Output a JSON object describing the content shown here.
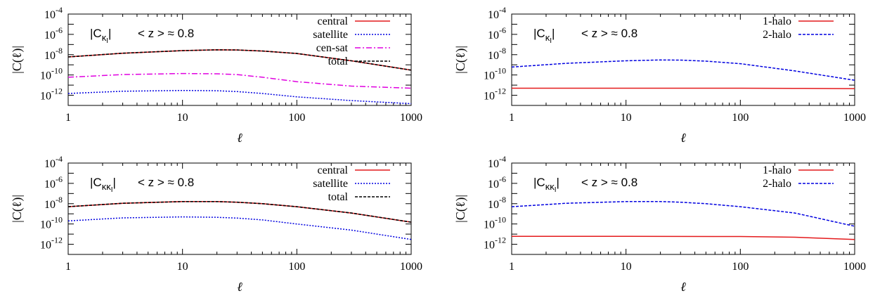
{
  "chart_data": [
    {
      "type": "line",
      "x_scale": "log",
      "y_scale": "log",
      "xlim": [
        1,
        1000
      ],
      "ylim": [
        1e-13,
        0.0001
      ],
      "xticks": [
        "1",
        "10",
        "100",
        "1000"
      ],
      "yticks": [
        {
          "base": "10",
          "exp": "-4"
        },
        {
          "base": "10",
          "exp": "-6"
        },
        {
          "base": "10",
          "exp": "-8"
        },
        {
          "base": "10",
          "exp": "-10"
        },
        {
          "base": "10",
          "exp": "-12"
        }
      ],
      "xlabel": "ℓ",
      "ylabel": "|C(ℓ)|",
      "legend_position": "top-right",
      "annotation_quantity": {
        "main": "|C",
        "sub": "κ",
        "subsub": "I",
        "close": "|"
      },
      "annotation_redshift": "< z > ≈ 0.8",
      "series": [
        {
          "name": "central",
          "color": "#e41a1c",
          "dash": "solid",
          "x": [
            1,
            3,
            10,
            20,
            30,
            50,
            100,
            300,
            1000
          ],
          "y": [
            6e-09,
            1.4e-08,
            2.5e-08,
            3e-08,
            2.9e-08,
            2.3e-08,
            1.3e-08,
            2.5e-09,
            3e-10
          ]
        },
        {
          "name": "satellite",
          "color": "#0000e0",
          "dash": "dotted",
          "x": [
            1,
            3,
            10,
            20,
            30,
            50,
            100,
            300,
            1000
          ],
          "y": [
            1.5e-12,
            2.5e-12,
            3e-12,
            2.8e-12,
            2.3e-12,
            1.5e-12,
            7e-13,
            3e-13,
            1.5e-13
          ]
        },
        {
          "name": "cen-sat",
          "color": "#e000e0",
          "dash": "dashdot",
          "x": [
            1,
            3,
            10,
            20,
            30,
            50,
            100,
            300,
            1000
          ],
          "y": [
            6e-11,
            1.1e-10,
            1.4e-10,
            1.3e-10,
            1.1e-10,
            6e-11,
            2.2e-11,
            8e-12,
            5e-12
          ]
        },
        {
          "name": "total",
          "color": "#000000",
          "dash": "dashed",
          "x": [
            1,
            3,
            10,
            20,
            30,
            50,
            100,
            300,
            1000
          ],
          "y": [
            6e-09,
            1.4e-08,
            2.5e-08,
            3e-08,
            2.9e-08,
            2.3e-08,
            1.3e-08,
            2.5e-09,
            3e-10
          ]
        }
      ]
    },
    {
      "type": "line",
      "x_scale": "log",
      "y_scale": "log",
      "xlim": [
        1,
        1000
      ],
      "ylim": [
        1e-13,
        0.0001
      ],
      "xticks": [
        "1",
        "10",
        "100",
        "1000"
      ],
      "yticks": [
        {
          "base": "10",
          "exp": "-4"
        },
        {
          "base": "10",
          "exp": "-6"
        },
        {
          "base": "10",
          "exp": "-8"
        },
        {
          "base": "10",
          "exp": "-10"
        },
        {
          "base": "10",
          "exp": "-12"
        }
      ],
      "xlabel": "ℓ",
      "ylabel": "|C(ℓ)|",
      "legend_position": "top-right",
      "annotation_quantity": {
        "main": "|C",
        "sub": "κ",
        "subsub": "I",
        "close": "|"
      },
      "annotation_redshift": "< z > ≈ 0.8",
      "series": [
        {
          "name": "1-halo",
          "color": "#e41a1c",
          "dash": "solid",
          "x": [
            1,
            10,
            100,
            300,
            1000
          ],
          "y": [
            5e-12,
            5e-12,
            5e-12,
            4.8e-12,
            4.5e-12
          ]
        },
        {
          "name": "2-halo",
          "color": "#0000e0",
          "dash": "dashed",
          "x": [
            1,
            3,
            10,
            20,
            30,
            50,
            100,
            300,
            1000
          ],
          "y": [
            6e-10,
            1.4e-09,
            2.5e-09,
            3e-09,
            2.9e-09,
            2.3e-09,
            1.3e-09,
            2.5e-10,
            3e-11
          ]
        }
      ]
    },
    {
      "type": "line",
      "x_scale": "log",
      "y_scale": "log",
      "xlim": [
        1,
        1000
      ],
      "ylim": [
        1e-13,
        0.0001
      ],
      "xticks": [
        "1",
        "10",
        "100",
        "1000"
      ],
      "yticks": [
        {
          "base": "10",
          "exp": "-4"
        },
        {
          "base": "10",
          "exp": "-6"
        },
        {
          "base": "10",
          "exp": "-8"
        },
        {
          "base": "10",
          "exp": "-10"
        },
        {
          "base": "10",
          "exp": "-12"
        }
      ],
      "xlabel": "ℓ",
      "ylabel": "|C(ℓ)|",
      "legend_position": "top-right",
      "annotation_quantity": {
        "main": "|C",
        "sub": "κκ",
        "subsub": "I",
        "close": "|"
      },
      "annotation_redshift": "< z > ≈ 0.8",
      "series": [
        {
          "name": "central",
          "color": "#e41a1c",
          "dash": "solid",
          "x": [
            1,
            3,
            10,
            20,
            30,
            50,
            100,
            300,
            1000
          ],
          "y": [
            5e-09,
            1.1e-08,
            1.6e-08,
            1.6e-08,
            1.4e-08,
            1e-08,
            5e-09,
            1.2e-09,
            1.5e-10
          ]
        },
        {
          "name": "satellite",
          "color": "#0000e0",
          "dash": "dotted",
          "x": [
            1,
            3,
            10,
            20,
            30,
            50,
            100,
            300,
            1000
          ],
          "y": [
            2e-10,
            4e-10,
            5e-10,
            4.5e-10,
            3.8e-10,
            2.5e-10,
            1e-10,
            2.5e-11,
            3e-12
          ]
        },
        {
          "name": "total",
          "color": "#000000",
          "dash": "dashed",
          "x": [
            1,
            3,
            10,
            20,
            30,
            50,
            100,
            300,
            1000
          ],
          "y": [
            5e-09,
            1.1e-08,
            1.6e-08,
            1.6e-08,
            1.4e-08,
            1e-08,
            5e-09,
            1.2e-09,
            1.5e-10
          ]
        }
      ]
    },
    {
      "type": "line",
      "x_scale": "log",
      "y_scale": "log",
      "xlim": [
        1,
        1000
      ],
      "ylim": [
        1e-13,
        0.0001
      ],
      "xticks": [
        "1",
        "10",
        "100",
        "1000"
      ],
      "yticks": [
        {
          "base": "10",
          "exp": "-4"
        },
        {
          "base": "10",
          "exp": "-6"
        },
        {
          "base": "10",
          "exp": "-8"
        },
        {
          "base": "10",
          "exp": "-10"
        },
        {
          "base": "10",
          "exp": "-12"
        }
      ],
      "xlabel": "ℓ",
      "ylabel": "|C(ℓ)|",
      "legend_position": "top-right",
      "annotation_quantity": {
        "main": "|C",
        "sub": "κκ",
        "subsub": "I",
        "close": "|"
      },
      "annotation_redshift": "< z > ≈ 0.8",
      "series": [
        {
          "name": "1-halo",
          "color": "#e41a1c",
          "dash": "solid",
          "x": [
            1,
            10,
            100,
            300,
            1000
          ],
          "y": [
            6e-12,
            6e-12,
            5.8e-12,
            5e-12,
            3e-12
          ]
        },
        {
          "name": "2-halo",
          "color": "#0000e0",
          "dash": "dashed",
          "x": [
            1,
            3,
            10,
            20,
            30,
            50,
            100,
            300,
            1000
          ],
          "y": [
            5e-09,
            1.1e-08,
            1.6e-08,
            1.6e-08,
            1.4e-08,
            1e-08,
            5e-09,
            1.2e-09,
            6e-11
          ]
        }
      ]
    }
  ]
}
